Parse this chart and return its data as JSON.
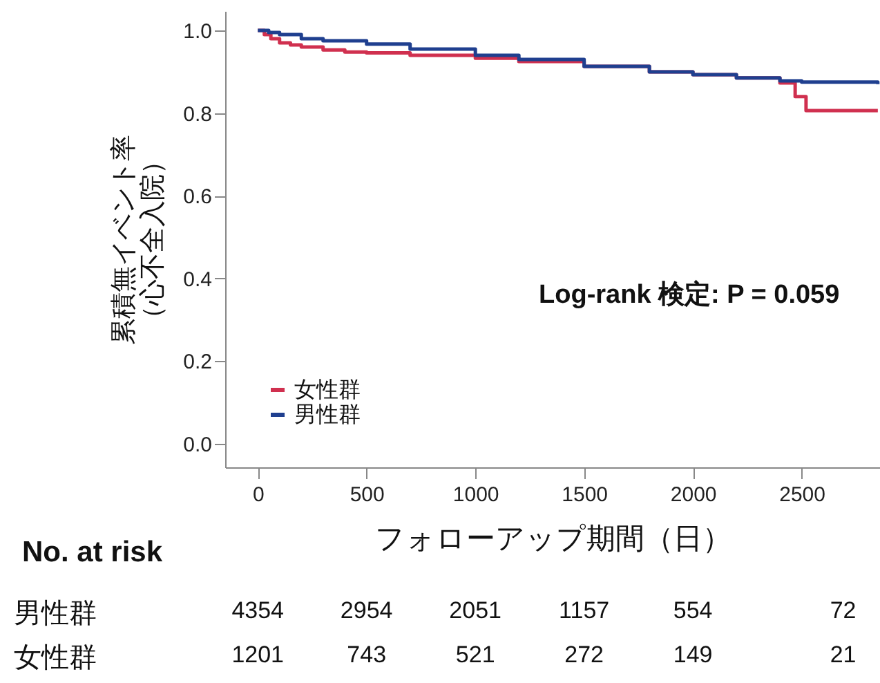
{
  "chart_data": {
    "type": "step",
    "xlabel": "フォローアップ期間（日）",
    "ylabel": "累積無イベント率（心不全入院）",
    "xlim": [
      -150,
      2860
    ],
    "xticks": [
      0,
      500,
      1000,
      1500,
      2000,
      2500
    ],
    "ylim": [
      -0.057,
      1.047
    ],
    "yticks": [
      {
        "value": 0,
        "label": "0.0"
      },
      0.2,
      0.4,
      0.6,
      0.8,
      {
        "value": 1,
        "label": "1.0"
      }
    ],
    "legend": "bottom left",
    "grid": false,
    "marker": "none",
    "line_style": "solid",
    "series": [
      {
        "name": "女性群",
        "color": "#d0304f",
        "x": [
          0,
          30,
          60,
          100,
          150,
          200,
          300,
          400,
          500,
          700,
          1000,
          1200,
          1500,
          1800,
          2000,
          2200,
          2400,
          2470,
          2520,
          2850
        ],
        "values": [
          1.0,
          0.99,
          0.98,
          0.97,
          0.965,
          0.96,
          0.953,
          0.948,
          0.946,
          0.94,
          0.933,
          0.925,
          0.913,
          0.9,
          0.893,
          0.885,
          0.873,
          0.84,
          0.806,
          0.806
        ]
      },
      {
        "name": "男性群",
        "color": "#1f3f8f",
        "x": [
          0,
          50,
          100,
          200,
          300,
          500,
          700,
          1000,
          1200,
          1500,
          1800,
          2000,
          2200,
          2400,
          2500,
          2850
        ],
        "values": [
          1.0,
          0.995,
          0.99,
          0.98,
          0.975,
          0.967,
          0.955,
          0.94,
          0.93,
          0.913,
          0.9,
          0.893,
          0.885,
          0.878,
          0.875,
          0.87
        ]
      }
    ],
    "annotations": [
      "Log-rank 検定: P = 0.059",
      "No. at risk",
      "男性群",
      "4354",
      "2954",
      "2051",
      "1157",
      "554",
      "72",
      "女性群",
      "1201",
      "743",
      "521",
      "272",
      "149",
      "21"
    ]
  }
}
